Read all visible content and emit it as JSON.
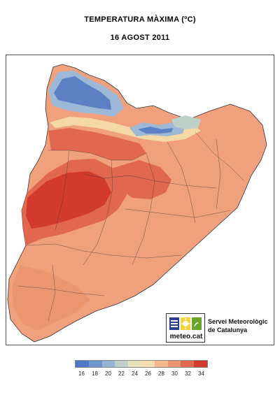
{
  "title": "TEMPERATURA MÀXIMA (ºC)",
  "date": "16 AGOST 2011",
  "logo": {
    "name": "meteo.cat",
    "service_line1": "Servei Meteorològic",
    "service_line2": "de Catalunya",
    "icons": [
      "cloud-icon",
      "sun-icon",
      "wave-icon"
    ]
  },
  "legend": {
    "ticks": [
      "16",
      "18",
      "20",
      "22",
      "24",
      "26",
      "28",
      "30",
      "32",
      "34"
    ],
    "colors": [
      "#4f79c6",
      "#6e96cf",
      "#94b2d2",
      "#bcd0c8",
      "#e6e3b8",
      "#f5deb0",
      "#f3b98a",
      "#ec9670",
      "#e1674f",
      "#d33a2e"
    ]
  },
  "map_colors": {
    "base": "#f0a07c",
    "warm": "#e6765c",
    "hot": "#d63f33",
    "cool": "#f4d8a8",
    "cold_light": "#9cb8d6",
    "cold": "#5b80c4",
    "border": "#333333"
  }
}
